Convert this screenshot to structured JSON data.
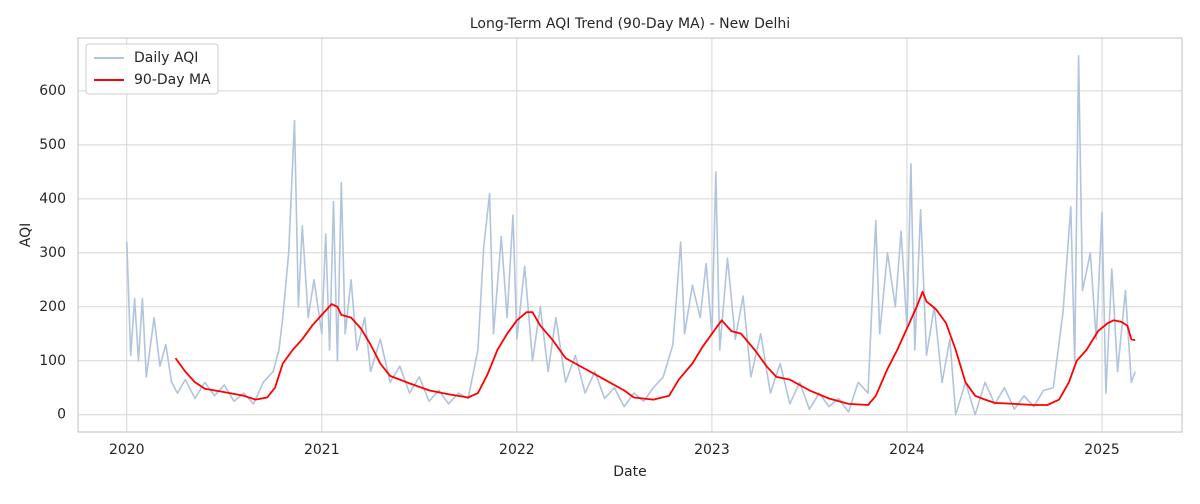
{
  "chart_data": {
    "type": "line",
    "title": "Long-Term AQI Trend (90-Day MA) - New Delhi",
    "x_label": "Date",
    "y_label": "AQI",
    "xlim": [
      2019.75,
      2025.41
    ],
    "xticks": [
      2020,
      2021,
      2022,
      2023,
      2024,
      2025
    ],
    "ylim": [
      -32,
      698
    ],
    "yticks": [
      0,
      100,
      200,
      300,
      400,
      500,
      600
    ],
    "grid": true,
    "legend": "upper-left",
    "series": [
      {
        "name": "Daily AQI",
        "color": "#b0c4de",
        "x": [
          2020.0,
          2020.02,
          2020.04,
          2020.06,
          2020.08,
          2020.1,
          2020.14,
          2020.17,
          2020.2,
          2020.23,
          2020.26,
          2020.3,
          2020.35,
          2020.4,
          2020.45,
          2020.5,
          2020.55,
          2020.6,
          2020.65,
          2020.7,
          2020.75,
          2020.78,
          2020.8,
          2020.83,
          2020.86,
          2020.88,
          2020.9,
          2020.93,
          2020.96,
          2021.0,
          2021.02,
          2021.04,
          2021.06,
          2021.08,
          2021.1,
          2021.12,
          2021.15,
          2021.18,
          2021.22,
          2021.25,
          2021.3,
          2021.35,
          2021.4,
          2021.45,
          2021.5,
          2021.55,
          2021.6,
          2021.65,
          2021.7,
          2021.75,
          2021.8,
          2021.83,
          2021.86,
          2021.88,
          2021.92,
          2021.95,
          2021.98,
          2022.0,
          2022.04,
          2022.08,
          2022.12,
          2022.16,
          2022.2,
          2022.25,
          2022.3,
          2022.35,
          2022.4,
          2022.45,
          2022.5,
          2022.55,
          2022.6,
          2022.65,
          2022.7,
          2022.75,
          2022.8,
          2022.84,
          2022.86,
          2022.9,
          2022.94,
          2022.97,
          2023.0,
          2023.02,
          2023.04,
          2023.08,
          2023.12,
          2023.16,
          2023.2,
          2023.25,
          2023.3,
          2023.35,
          2023.4,
          2023.45,
          2023.5,
          2023.55,
          2023.6,
          2023.65,
          2023.7,
          2023.75,
          2023.8,
          2023.84,
          2023.86,
          2023.9,
          2023.94,
          2023.97,
          2024.0,
          2024.02,
          2024.04,
          2024.07,
          2024.1,
          2024.14,
          2024.18,
          2024.22,
          2024.25,
          2024.3,
          2024.35,
          2024.4,
          2024.45,
          2024.5,
          2024.55,
          2024.6,
          2024.65,
          2024.7,
          2024.75,
          2024.8,
          2024.84,
          2024.86,
          2024.88,
          2024.9,
          2024.94,
          2024.97,
          2025.0,
          2025.02,
          2025.05,
          2025.08,
          2025.12,
          2025.15,
          2025.17
        ],
        "values": [
          320,
          110,
          215,
          100,
          215,
          70,
          180,
          90,
          130,
          60,
          40,
          65,
          30,
          60,
          35,
          55,
          25,
          40,
          20,
          60,
          80,
          120,
          180,
          300,
          545,
          200,
          350,
          180,
          250,
          150,
          335,
          120,
          395,
          100,
          430,
          150,
          250,
          120,
          180,
          80,
          140,
          60,
          90,
          40,
          70,
          25,
          45,
          20,
          40,
          30,
          120,
          310,
          410,
          150,
          330,
          180,
          370,
          140,
          275,
          100,
          200,
          80,
          180,
          60,
          110,
          40,
          80,
          30,
          50,
          15,
          40,
          25,
          50,
          70,
          130,
          320,
          150,
          240,
          180,
          280,
          150,
          450,
          120,
          290,
          140,
          220,
          70,
          150,
          40,
          95,
          20,
          60,
          10,
          40,
          15,
          30,
          5,
          60,
          40,
          360,
          150,
          300,
          200,
          340,
          160,
          465,
          120,
          380,
          110,
          200,
          60,
          140,
          0,
          60,
          0,
          60,
          20,
          50,
          10,
          35,
          15,
          45,
          50,
          190,
          385,
          100,
          665,
          230,
          300,
          140,
          375,
          40,
          270,
          80,
          230,
          60,
          80
        ]
      },
      {
        "name": "90-Day MA",
        "color": "#ff0000",
        "x": [
          2020.25,
          2020.3,
          2020.35,
          2020.4,
          2020.5,
          2020.6,
          2020.66,
          2020.72,
          2020.76,
          2020.8,
          2020.85,
          2020.9,
          2020.95,
          2021.0,
          2021.05,
          2021.08,
          2021.1,
          2021.15,
          2021.2,
          2021.25,
          2021.3,
          2021.35,
          2021.45,
          2021.55,
          2021.65,
          2021.75,
          2021.8,
          2021.85,
          2021.9,
          2021.95,
          2022.0,
          2022.05,
          2022.08,
          2022.12,
          2022.18,
          2022.25,
          2022.35,
          2022.45,
          2022.55,
          2022.6,
          2022.7,
          2022.78,
          2022.83,
          2022.9,
          2022.95,
          2023.0,
          2023.05,
          2023.1,
          2023.15,
          2023.22,
          2023.28,
          2023.33,
          2023.4,
          2023.5,
          2023.6,
          2023.7,
          2023.8,
          2023.84,
          2023.9,
          2023.95,
          2024.0,
          2024.05,
          2024.08,
          2024.1,
          2024.15,
          2024.2,
          2024.25,
          2024.3,
          2024.35,
          2024.4,
          2024.45,
          2024.55,
          2024.65,
          2024.72,
          2024.78,
          2024.83,
          2024.87,
          2024.92,
          2024.98,
          2025.03,
          2025.06,
          2025.1,
          2025.13,
          2025.15,
          2025.17
        ],
        "values": [
          105,
          80,
          60,
          48,
          42,
          35,
          28,
          32,
          50,
          95,
          120,
          140,
          165,
          185,
          205,
          200,
          185,
          180,
          160,
          130,
          95,
          72,
          58,
          45,
          38,
          32,
          40,
          75,
          120,
          150,
          175,
          190,
          190,
          165,
          140,
          105,
          85,
          65,
          45,
          32,
          28,
          35,
          65,
          95,
          125,
          150,
          175,
          155,
          150,
          120,
          90,
          70,
          65,
          45,
          30,
          20,
          18,
          35,
          85,
          120,
          160,
          200,
          228,
          210,
          195,
          170,
          120,
          60,
          35,
          28,
          22,
          20,
          18,
          18,
          28,
          60,
          100,
          120,
          155,
          170,
          175,
          172,
          165,
          140,
          138
        ]
      }
    ]
  }
}
